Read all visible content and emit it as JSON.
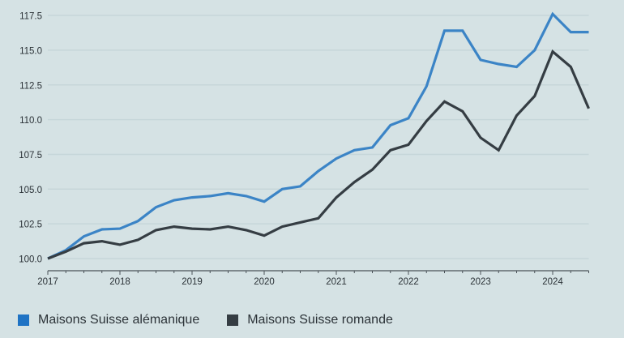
{
  "chart_data": {
    "type": "line",
    "title": "",
    "xlabel": "",
    "ylabel": "",
    "x_start": 2017,
    "x_step": 0.25,
    "xlim": [
      2017,
      2024.5
    ],
    "ylim": [
      99.2,
      118
    ],
    "x_ticks": [
      "2017",
      "2018",
      "2019",
      "2020",
      "2021",
      "2022",
      "2023",
      "2024"
    ],
    "y_ticks": [
      "100.0",
      "102.5",
      "105.0",
      "107.5",
      "110.0",
      "112.5",
      "115.0",
      "117.5"
    ],
    "grid": true,
    "legend_position": "bottom-left",
    "series": [
      {
        "name": "Maisons Suisse alémanique",
        "color": "#3b84c6",
        "values": [
          100,
          100.6,
          101.6,
          102.1,
          102.15,
          102.7,
          103.7,
          104.2,
          104.4,
          104.5,
          104.7,
          104.5,
          104.1,
          105.0,
          105.2,
          106.3,
          107.2,
          107.8,
          108.0,
          109.6,
          110.1,
          112.4,
          116.4,
          116.4,
          114.3,
          114.0,
          113.8,
          115.0,
          117.6,
          116.3,
          116.3
        ]
      },
      {
        "name": "Maisons Suisse romande",
        "color": "#353d43",
        "values": [
          100,
          100.5,
          101.1,
          101.25,
          101.0,
          101.35,
          102.05,
          102.3,
          102.15,
          102.1,
          102.3,
          102.05,
          101.65,
          102.3,
          102.6,
          102.9,
          104.4,
          105.5,
          106.4,
          107.8,
          108.2,
          109.9,
          111.3,
          110.6,
          108.7,
          107.8,
          110.3,
          111.7,
          114.9,
          113.8,
          110.8
        ]
      }
    ]
  }
}
